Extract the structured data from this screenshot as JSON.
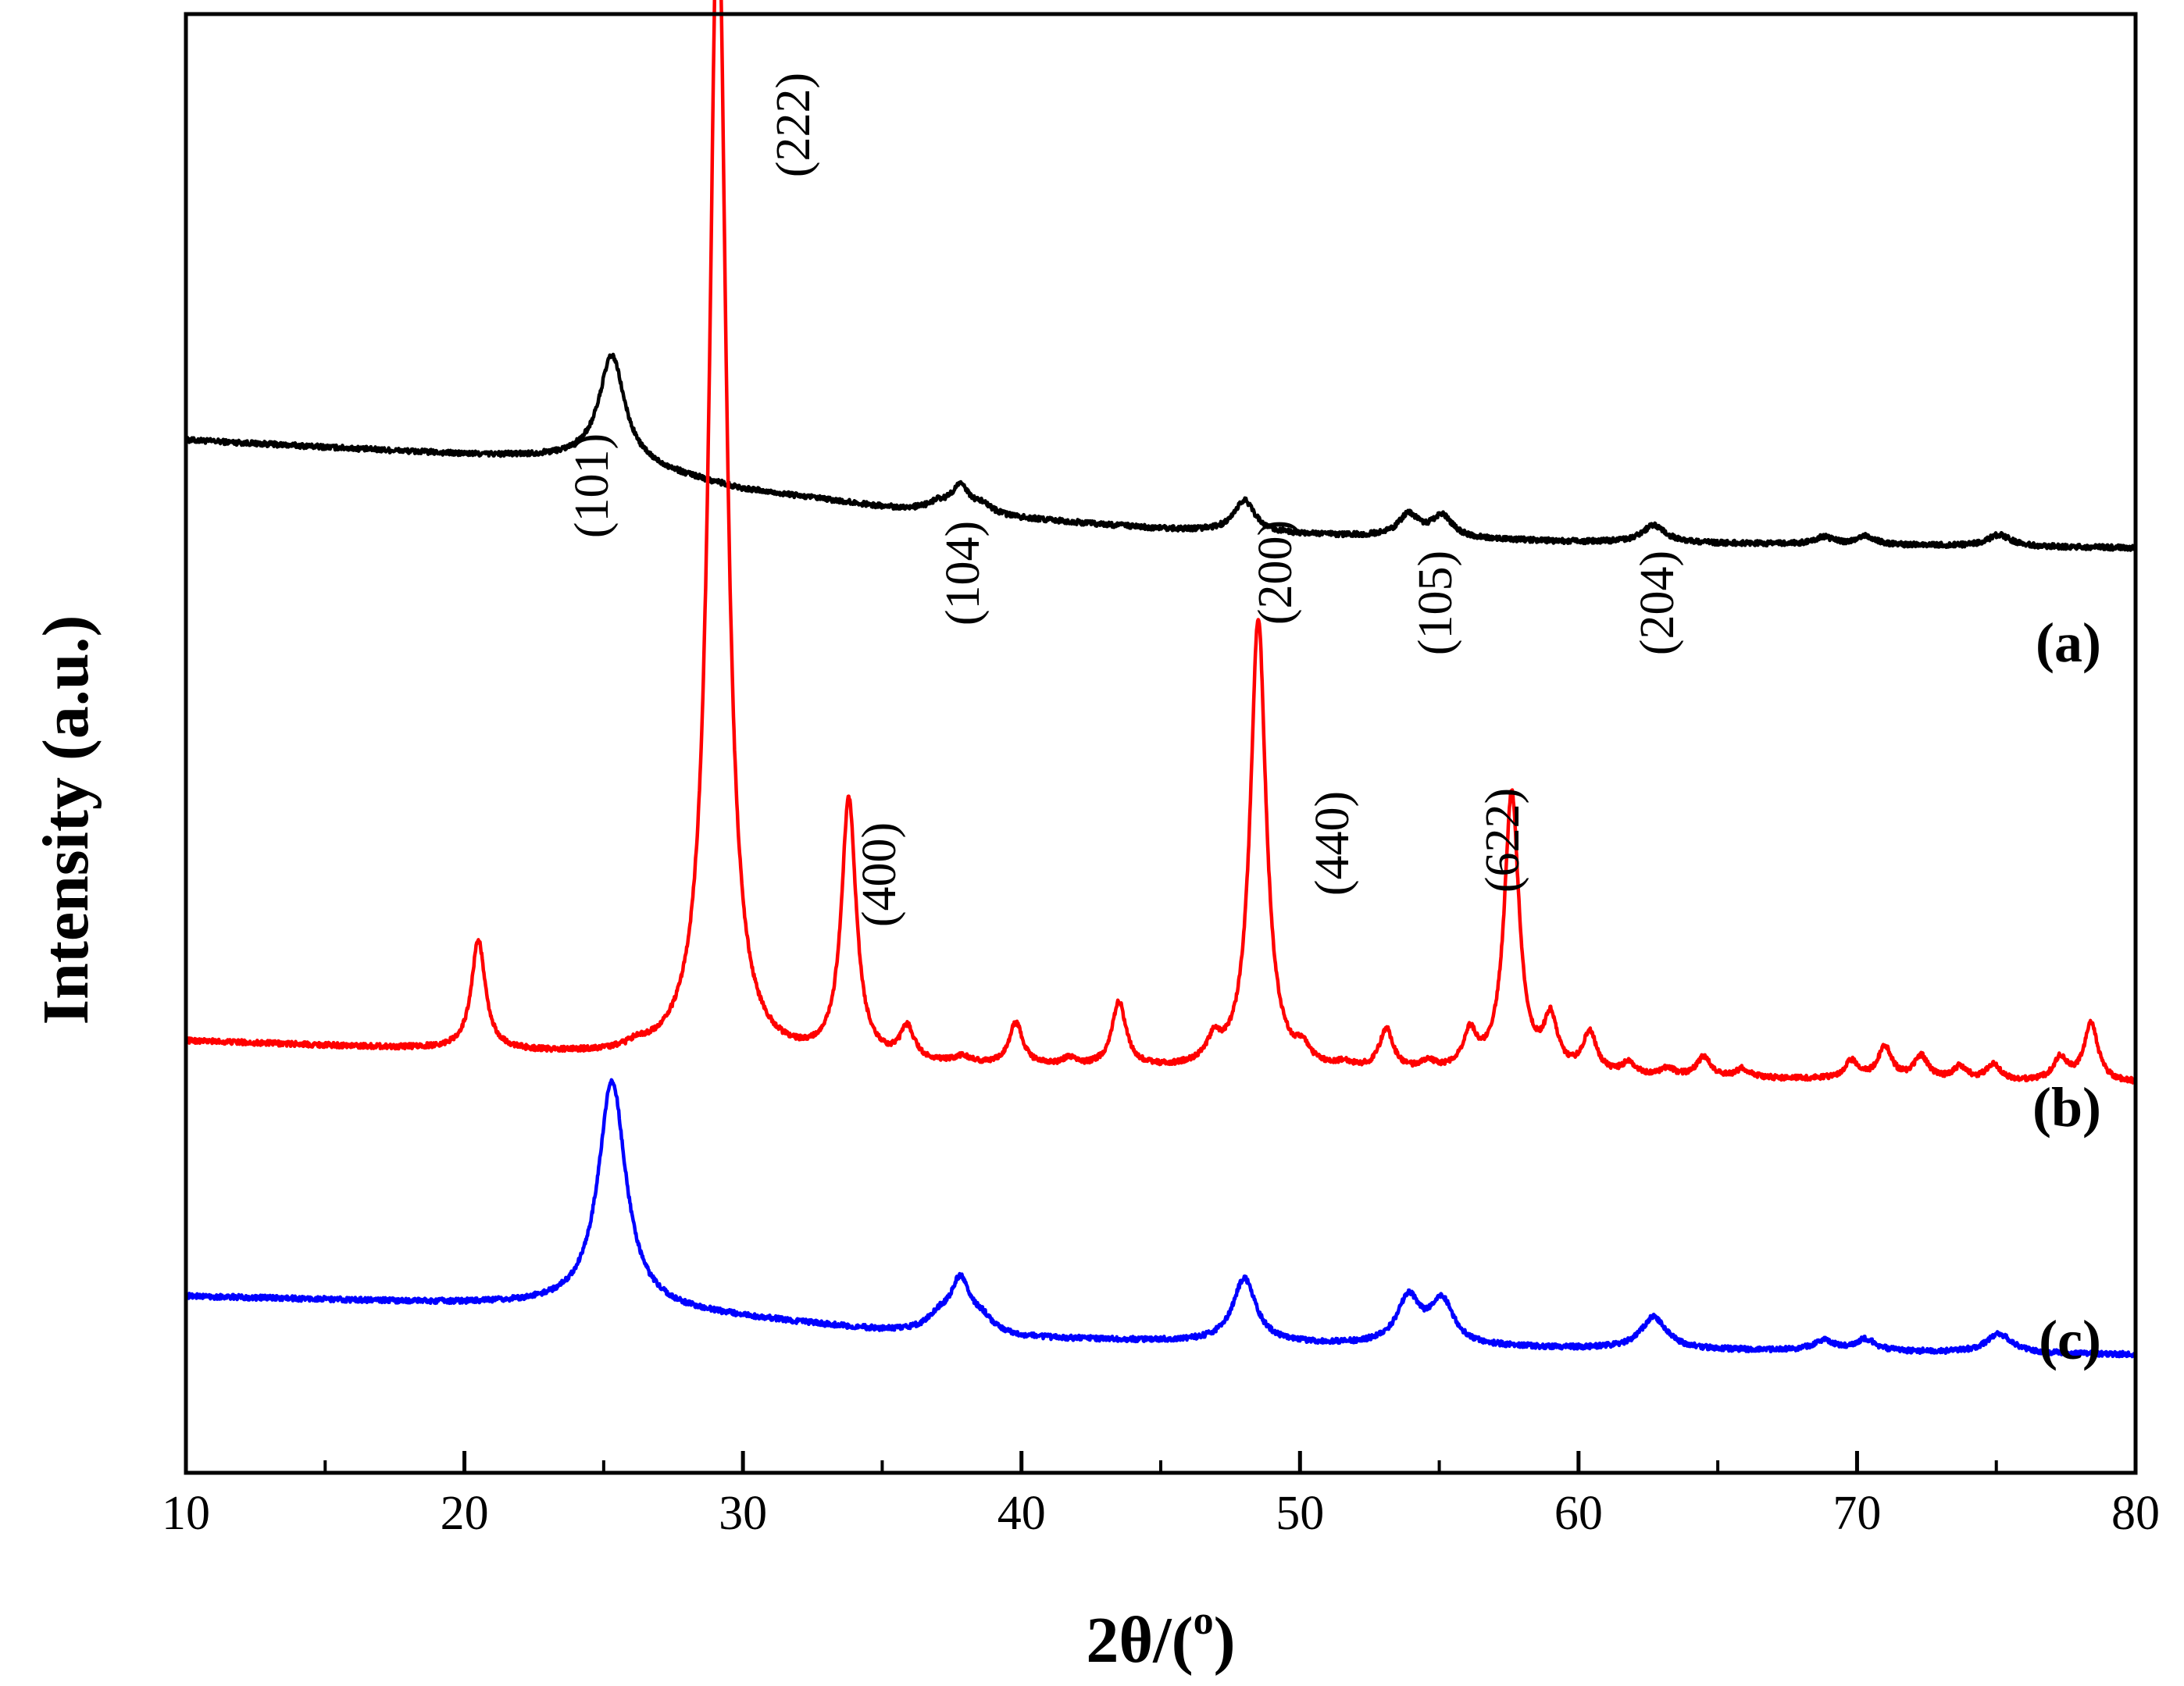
{
  "chart_data": {
    "type": "line",
    "xlabel_main": "2θ/(",
    "xlabel_sup": "o",
    "xlabel_end": ")",
    "ylabel": "Intensity (a.u.)",
    "xlim": [
      10,
      80
    ],
    "xticks_major": [
      10,
      20,
      30,
      40,
      50,
      60,
      70,
      80
    ],
    "xticks_minor": [
      15,
      25,
      35,
      45,
      55,
      65,
      75
    ],
    "ylim": [
      0,
      100
    ],
    "series": [
      {
        "tag": "(a)",
        "color": "#000000",
        "baseline": [
          [
            10,
            70.8
          ],
          [
            20,
            69.8
          ],
          [
            25,
            69.5
          ],
          [
            30,
            67.4
          ],
          [
            35,
            66.2
          ],
          [
            40,
            65.4
          ],
          [
            45,
            64.7
          ],
          [
            50,
            64.3
          ],
          [
            60,
            63.8
          ],
          [
            70,
            63.6
          ],
          [
            80,
            63.4
          ]
        ],
        "peaks": [
          {
            "pos": 25.3,
            "height": 7.2,
            "width": 0.55
          },
          {
            "pos": 37.0,
            "height": 0.5,
            "width": 0.4
          },
          {
            "pos": 37.8,
            "height": 1.8,
            "width": 0.4
          },
          {
            "pos": 38.6,
            "height": 0.6,
            "width": 0.4
          },
          {
            "pos": 48.0,
            "height": 2.2,
            "width": 0.45
          },
          {
            "pos": 53.9,
            "height": 1.5,
            "width": 0.45
          },
          {
            "pos": 55.1,
            "height": 1.5,
            "width": 0.45
          },
          {
            "pos": 62.7,
            "height": 1.2,
            "width": 0.5
          },
          {
            "pos": 68.8,
            "height": 0.5,
            "width": 0.4
          },
          {
            "pos": 70.3,
            "height": 0.6,
            "width": 0.4
          },
          {
            "pos": 75.1,
            "height": 0.8,
            "width": 0.5
          }
        ]
      },
      {
        "tag": "(b)",
        "color": "#ff0000",
        "baseline": [
          [
            10,
            29.6
          ],
          [
            20,
            28.9
          ],
          [
            30,
            28.1
          ],
          [
            40,
            27.7
          ],
          [
            50,
            27.4
          ],
          [
            60,
            27.1
          ],
          [
            70,
            26.9
          ],
          [
            80,
            26.7
          ]
        ],
        "peaks": [
          {
            "pos": 20.5,
            "height": 7.5,
            "width": 0.3
          },
          {
            "pos": 26.2,
            "height": 0.4,
            "width": 0.3
          },
          {
            "pos": 29.1,
            "height": 81.0,
            "width": 0.36
          },
          {
            "pos": 33.8,
            "height": 17.8,
            "width": 0.32
          },
          {
            "pos": 35.9,
            "height": 2.2,
            "width": 0.3
          },
          {
            "pos": 37.9,
            "height": 0.5,
            "width": 0.3
          },
          {
            "pos": 39.8,
            "height": 2.9,
            "width": 0.3
          },
          {
            "pos": 41.7,
            "height": 0.5,
            "width": 0.3
          },
          {
            "pos": 43.5,
            "height": 4.5,
            "width": 0.3
          },
          {
            "pos": 46.9,
            "height": 1.5,
            "width": 0.3
          },
          {
            "pos": 48.5,
            "height": 31.0,
            "width": 0.34
          },
          {
            "pos": 50.1,
            "height": 1.0,
            "width": 0.3
          },
          {
            "pos": 51.6,
            "height": 0.4,
            "width": 0.3
          },
          {
            "pos": 53.1,
            "height": 2.8,
            "width": 0.3
          },
          {
            "pos": 54.6,
            "height": 0.6,
            "width": 0.3
          },
          {
            "pos": 56.1,
            "height": 2.5,
            "width": 0.3
          },
          {
            "pos": 57.6,
            "height": 19.2,
            "width": 0.32
          },
          {
            "pos": 59.0,
            "height": 3.5,
            "width": 0.3
          },
          {
            "pos": 60.4,
            "height": 2.8,
            "width": 0.3
          },
          {
            "pos": 61.8,
            "height": 0.8,
            "width": 0.3
          },
          {
            "pos": 63.2,
            "height": 0.5,
            "width": 0.3
          },
          {
            "pos": 64.5,
            "height": 1.4,
            "width": 0.3
          },
          {
            "pos": 65.9,
            "height": 0.6,
            "width": 0.3
          },
          {
            "pos": 69.8,
            "height": 1.2,
            "width": 0.3
          },
          {
            "pos": 71.0,
            "height": 2.2,
            "width": 0.3
          },
          {
            "pos": 72.3,
            "height": 1.6,
            "width": 0.3
          },
          {
            "pos": 73.7,
            "height": 0.9,
            "width": 0.3
          },
          {
            "pos": 74.9,
            "height": 1.1,
            "width": 0.3
          },
          {
            "pos": 77.3,
            "height": 1.6,
            "width": 0.3
          },
          {
            "pos": 78.4,
            "height": 4.0,
            "width": 0.3
          }
        ]
      },
      {
        "tag": "(c)",
        "color": "#0000ff",
        "baseline": [
          [
            10,
            12.1
          ],
          [
            20,
            11.6
          ],
          [
            25,
            11.4
          ],
          [
            30,
            10.6
          ],
          [
            35,
            9.7
          ],
          [
            40,
            9.2
          ],
          [
            50,
            8.8
          ],
          [
            60,
            8.5
          ],
          [
            70,
            8.3
          ],
          [
            80,
            8.1
          ]
        ],
        "peaks": [
          {
            "pos": 25.3,
            "height": 15.5,
            "width": 0.6
          },
          {
            "pos": 37.0,
            "height": 0.9,
            "width": 0.45
          },
          {
            "pos": 37.8,
            "height": 3.6,
            "width": 0.45
          },
          {
            "pos": 38.6,
            "height": 0.9,
            "width": 0.45
          },
          {
            "pos": 48.0,
            "height": 4.4,
            "width": 0.5
          },
          {
            "pos": 53.9,
            "height": 3.2,
            "width": 0.5
          },
          {
            "pos": 55.1,
            "height": 3.0,
            "width": 0.5
          },
          {
            "pos": 62.7,
            "height": 2.2,
            "width": 0.55
          },
          {
            "pos": 68.8,
            "height": 0.7,
            "width": 0.45
          },
          {
            "pos": 70.3,
            "height": 0.8,
            "width": 0.45
          },
          {
            "pos": 75.1,
            "height": 1.3,
            "width": 0.55
          }
        ]
      }
    ],
    "annotations": [
      {
        "text": "(101)",
        "series": 0
      },
      {
        "text": "(104)",
        "series": 0
      },
      {
        "text": "(200)",
        "series": 0
      },
      {
        "text": "(105)",
        "series": 0
      },
      {
        "text": "(204)",
        "series": 0
      },
      {
        "text": "(222)",
        "series": 1
      },
      {
        "text": "(400)",
        "series": 1
      },
      {
        "text": "(440)",
        "series": 1
      },
      {
        "text": "(622)",
        "series": 1
      }
    ]
  }
}
